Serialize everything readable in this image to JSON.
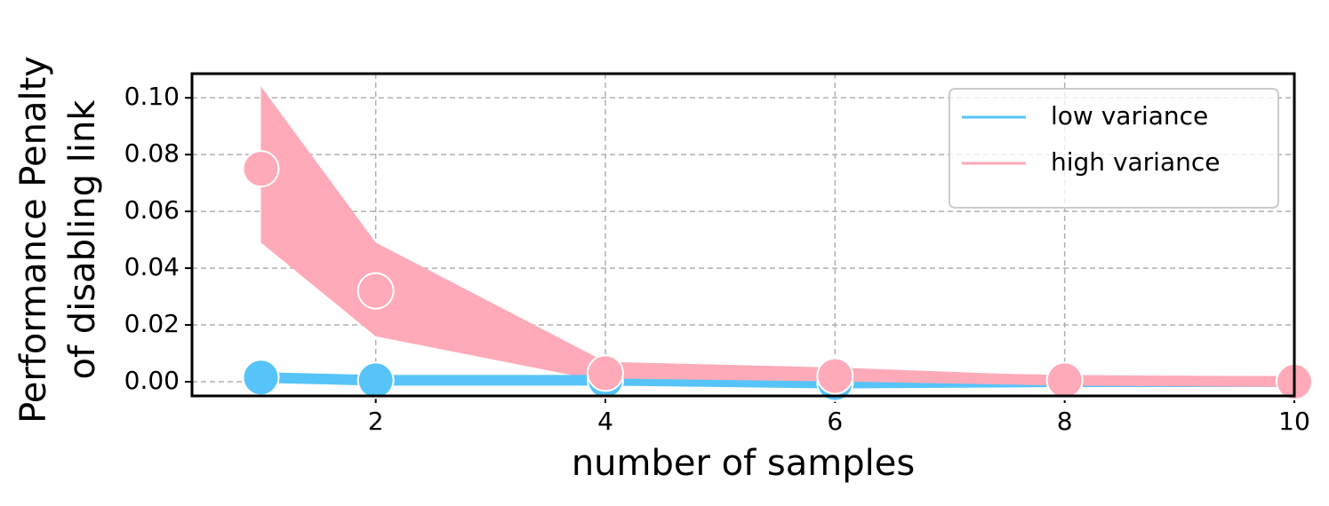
{
  "chart_data": {
    "type": "line",
    "xlabel": "number of samples",
    "ylabel": [
      "Performance Penalty",
      "of disabling link"
    ],
    "x": [
      1,
      2,
      4,
      6,
      8,
      10
    ],
    "series": [
      {
        "name": "low variance",
        "color": "#56c4f8",
        "values": [
          0.0015,
          0.0005,
          0.0005,
          -0.0005,
          0.0,
          0.0
        ]
      },
      {
        "name": "high variance",
        "color": "#ffaab9",
        "values": [
          0.075,
          0.032,
          0.003,
          0.002,
          0.0005,
          0.0
        ],
        "lower": [
          0.049,
          0.016,
          0.0,
          -0.0005,
          -0.0005,
          -0.0005
        ],
        "upper": [
          0.104,
          0.049,
          0.007,
          0.005,
          0.002,
          0.002
        ]
      }
    ],
    "xlim": [
      0.4,
      10
    ],
    "ylim": [
      -0.005,
      0.1085
    ],
    "xticks": [
      2,
      4,
      6,
      8,
      10
    ],
    "yticks": [
      {
        "value": 0,
        "label": "0.00"
      },
      {
        "value": 0.02,
        "label": "0.02"
      },
      {
        "value": 0.04,
        "label": "0.04"
      },
      {
        "value": 0.06,
        "label": "0.06"
      },
      {
        "value": 0.08,
        "label": "0.08"
      },
      {
        "value": 0.1,
        "label": "0.10"
      }
    ],
    "grid": true,
    "legend": "upper right"
  }
}
